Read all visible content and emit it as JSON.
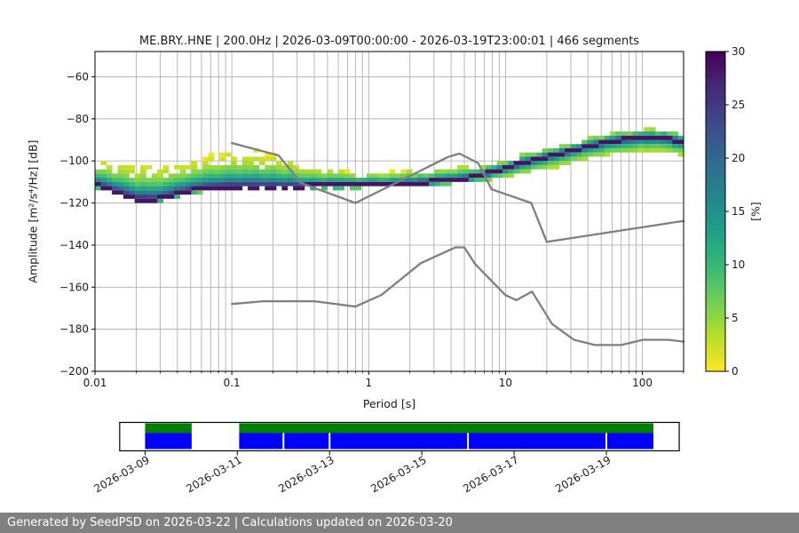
{
  "chart_data": {
    "type": "heatmap",
    "title": "ME.BRY..HNE | 200.0Hz | 2026-03-09T00:00:00 - 2026-03-19T23:00:01 | 466 segments",
    "xlabel": "Period [s]",
    "ylabel": "Amplitude [m²/s⁴/Hz] [dB]",
    "x_scale": "log",
    "xlim": [
      0.01,
      200
    ],
    "ylim": [
      -200,
      -48
    ],
    "grid": true,
    "x_ticks": {
      "values": [
        0.01,
        0.1,
        1,
        10,
        100
      ],
      "labels": [
        "0.01",
        "0.1",
        "1",
        "10",
        "100"
      ]
    },
    "y_ticks": {
      "values": [
        -60,
        -80,
        -100,
        -120,
        -140,
        -160,
        -180,
        -200
      ],
      "labels": [
        "−60",
        "−80",
        "−100",
        "−120",
        "−140",
        "−160",
        "−180",
        "−200"
      ]
    },
    "colorbar": {
      "label": "[%]",
      "min": 0,
      "max": 30,
      "tick_values": [
        0,
        5,
        10,
        15,
        20,
        25,
        30
      ],
      "tick_labels": [
        "0",
        "5",
        "10",
        "15",
        "20",
        "25",
        "30"
      ],
      "colormap": "viridis_r",
      "colormap_stops": [
        "#440154",
        "#482878",
        "#3e4989",
        "#31688e",
        "#26828e",
        "#1f9e89",
        "#35b779",
        "#6ece58",
        "#b5de2b",
        "#fde725"
      ]
    },
    "psd_band": [
      {
        "p": 0.01,
        "top": -100.5,
        "bottom": -112.5,
        "mode": -111.0
      },
      {
        "p": 0.014,
        "top": -102.0,
        "bottom": -116.0,
        "mode": -114.5
      },
      {
        "p": 0.02,
        "top": -103.0,
        "bottom": -119.5,
        "mode": -118.0
      },
      {
        "p": 0.028,
        "top": -103.0,
        "bottom": -120.0,
        "mode": -118.5
      },
      {
        "p": 0.04,
        "top": -102.0,
        "bottom": -117.5,
        "mode": -115.5
      },
      {
        "p": 0.06,
        "top": -100.0,
        "bottom": -115.0,
        "mode": -113.0
      },
      {
        "p": 0.08,
        "top": -98.5,
        "bottom": -114.0,
        "mode": -112.5
      },
      {
        "p": 0.1,
        "top": -97.5,
        "bottom": -113.5,
        "mode": -112.3
      },
      {
        "p": 0.15,
        "top": -97.0,
        "bottom": -113.5,
        "mode": -112.3
      },
      {
        "p": 0.22,
        "top": -98.5,
        "bottom": -113.2,
        "mode": -112.2
      },
      {
        "p": 0.35,
        "top": -103.0,
        "bottom": -113.0,
        "mode": -112.0
      },
      {
        "p": 0.5,
        "top": -105.0,
        "bottom": -113.0,
        "mode": -111.8
      },
      {
        "p": 0.8,
        "top": -106.0,
        "bottom": -112.8,
        "mode": -111.5
      },
      {
        "p": 1.2,
        "top": -106.0,
        "bottom": -112.5,
        "mode": -111.2
      },
      {
        "p": 2.0,
        "top": -105.5,
        "bottom": -112.0,
        "mode": -110.5
      },
      {
        "p": 3.0,
        "top": -104.5,
        "bottom": -111.5,
        "mode": -109.8
      },
      {
        "p": 5.0,
        "top": -103.5,
        "bottom": -110.5,
        "mode": -108.5
      },
      {
        "p": 7.0,
        "top": -102.0,
        "bottom": -109.5,
        "mode": -106.5
      },
      {
        "p": 10.0,
        "top": -99.5,
        "bottom": -108.0,
        "mode": -103.5
      },
      {
        "p": 14.0,
        "top": -97.0,
        "bottom": -106.0,
        "mode": -100.5
      },
      {
        "p": 20.0,
        "top": -94.5,
        "bottom": -103.5,
        "mode": -98.0
      },
      {
        "p": 30.0,
        "top": -91.5,
        "bottom": -101.0,
        "mode": -95.0
      },
      {
        "p": 50.0,
        "top": -88.5,
        "bottom": -98.0,
        "mode": -91.5
      },
      {
        "p": 70.0,
        "top": -86.5,
        "bottom": -96.5,
        "mode": -89.8
      },
      {
        "p": 100.0,
        "top": -85.5,
        "bottom": -95.5,
        "mode": -88.8
      },
      {
        "p": 140.0,
        "top": -85.5,
        "bottom": -95.5,
        "mode": -89.0
      },
      {
        "p": 200.0,
        "top": -87.0,
        "bottom": -97.0,
        "mode": -91.0
      }
    ],
    "noise_models": {
      "name": "Peterson NLNM/NHNM",
      "color": "#7f7f7f",
      "nhnm": [
        [
          0.1,
          -91.5
        ],
        [
          0.22,
          -97.4
        ],
        [
          0.32,
          -110.5
        ],
        [
          0.8,
          -120.0
        ],
        [
          3.8,
          -98.1
        ],
        [
          4.6,
          -96.5
        ],
        [
          6.3,
          -101.0
        ],
        [
          7.9,
          -113.5
        ],
        [
          15.4,
          -120.0
        ],
        [
          20.0,
          -138.5
        ],
        [
          200.0,
          -128.5
        ]
      ],
      "nlnm": [
        [
          0.1,
          -168.0
        ],
        [
          0.17,
          -166.7
        ],
        [
          0.4,
          -166.7
        ],
        [
          0.8,
          -169.2
        ],
        [
          1.24,
          -163.7
        ],
        [
          2.4,
          -148.6
        ],
        [
          4.3,
          -141.1
        ],
        [
          5.0,
          -141.1
        ],
        [
          6.0,
          -149.0
        ],
        [
          10.0,
          -163.8
        ],
        [
          12.0,
          -166.2
        ],
        [
          15.6,
          -162.1
        ],
        [
          21.9,
          -177.5
        ],
        [
          31.6,
          -185.0
        ],
        [
          45.0,
          -187.5
        ],
        [
          70.0,
          -187.5
        ],
        [
          101.0,
          -185.0
        ],
        [
          154.0,
          -185.0
        ],
        [
          200.0,
          -185.9
        ]
      ]
    },
    "availability": {
      "tick_labels": [
        "2026-03-09",
        "2026-03-11",
        "2026-03-13",
        "2026-03-15",
        "2026-03-17",
        "2026-03-19"
      ],
      "tick_days": [
        0,
        2,
        4,
        6,
        8,
        10
      ],
      "bar_start_day": -0.55,
      "bar_end_day": 11.58,
      "segments_days": [
        [
          0,
          1.01
        ],
        [
          2.04,
          11.02
        ]
      ],
      "gap_slit_days": [
        3.0,
        4.0,
        7.0,
        10.0
      ],
      "data_color": "#008000",
      "psd_color": "#0000ff"
    }
  },
  "footer": {
    "text": "Generated by SeedPSD on 2026-03-22 | Calculations updated on 2026-03-20",
    "background": "#808080",
    "text_color": "#ffffff"
  },
  "colors": {
    "grid": "#b0b0b0",
    "frame": "#000000",
    "noise_model_line": "#7f7f7f",
    "background": "#ffffff"
  }
}
